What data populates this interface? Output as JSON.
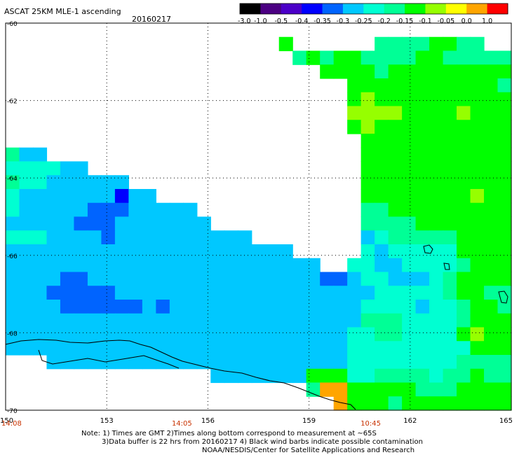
{
  "header": {
    "product": "ASCAT 25KM MLE-1 ascending",
    "date": "20160217"
  },
  "colorbar": {
    "labels": [
      "-3.0",
      "-1.0",
      "-0.5",
      "-0.4",
      "-0.35",
      "-0.3",
      "-0.25",
      "-0.2",
      "-0.15",
      "-0.1",
      "-0.05",
      "0.0",
      "1.0"
    ],
    "colors": [
      "#000000",
      "#4b0082",
      "#4b00c8",
      "#0000ff",
      "#0064ff",
      "#00c8ff",
      "#00ffd2",
      "#00ff96",
      "#00ff00",
      "#96ff00",
      "#ffff00",
      "#ffa500",
      "#ff0000"
    ]
  },
  "chart_data": {
    "type": "heatmap",
    "title": "ASCAT 25KM MLE-1 ascending",
    "date": "20160217",
    "x_ticks": [
      "150",
      "153",
      "156",
      "159",
      "162",
      "165"
    ],
    "y_ticks": [
      "-60",
      "-62",
      "-64",
      "-66",
      "-68",
      "-70"
    ],
    "xlim": [
      150,
      165
    ],
    "ylim": [
      -70,
      -60
    ],
    "time_labels": [
      {
        "x": 150,
        "label": "14:08"
      },
      {
        "x": 155.2,
        "label": "14:05"
      },
      {
        "x": 160.8,
        "label": "10:45"
      }
    ],
    "grid": true,
    "cell_encoding": "each number is an index into colorbar.colors for one grid cell; -1 = no data (white)",
    "grid_rows": 28,
    "grid_cols": 37,
    "cells": [
      [
        -1,
        -1,
        -1,
        -1,
        -1,
        -1,
        -1,
        -1,
        -1,
        -1,
        -1,
        -1,
        -1,
        -1,
        -1,
        -1,
        -1,
        -1,
        -1,
        -1,
        -1,
        -1,
        -1,
        -1,
        -1,
        -1,
        -1,
        -1,
        -1,
        -1,
        -1,
        -1,
        -1,
        -1,
        -1,
        -1,
        -1
      ],
      [
        -1,
        -1,
        -1,
        -1,
        -1,
        -1,
        -1,
        -1,
        -1,
        -1,
        -1,
        -1,
        -1,
        -1,
        -1,
        -1,
        -1,
        -1,
        -1,
        -1,
        8,
        -1,
        -1,
        -1,
        -1,
        -1,
        -1,
        7,
        7,
        7,
        7,
        8,
        8,
        7,
        7,
        -1,
        -1
      ],
      [
        -1,
        -1,
        -1,
        -1,
        -1,
        -1,
        -1,
        -1,
        -1,
        -1,
        -1,
        -1,
        -1,
        -1,
        -1,
        -1,
        -1,
        -1,
        -1,
        -1,
        -1,
        7,
        8,
        7,
        8,
        8,
        7,
        7,
        7,
        7,
        8,
        8,
        7,
        7,
        7,
        7,
        7
      ],
      [
        -1,
        -1,
        -1,
        -1,
        -1,
        -1,
        -1,
        -1,
        -1,
        -1,
        -1,
        -1,
        -1,
        -1,
        -1,
        -1,
        -1,
        -1,
        -1,
        -1,
        -1,
        -1,
        -1,
        8,
        8,
        8,
        8,
        7,
        8,
        8,
        8,
        8,
        8,
        8,
        8,
        8,
        8
      ],
      [
        -1,
        -1,
        -1,
        -1,
        -1,
        -1,
        -1,
        -1,
        -1,
        -1,
        -1,
        -1,
        -1,
        -1,
        -1,
        -1,
        -1,
        -1,
        -1,
        -1,
        -1,
        -1,
        -1,
        -1,
        -1,
        8,
        8,
        8,
        8,
        8,
        8,
        8,
        8,
        8,
        8,
        8,
        7
      ],
      [
        -1,
        -1,
        -1,
        -1,
        -1,
        -1,
        -1,
        -1,
        -1,
        -1,
        -1,
        -1,
        -1,
        -1,
        -1,
        -1,
        -1,
        -1,
        -1,
        -1,
        -1,
        -1,
        -1,
        -1,
        -1,
        8,
        9,
        8,
        8,
        8,
        8,
        8,
        8,
        8,
        8,
        8,
        8
      ],
      [
        -1,
        -1,
        -1,
        -1,
        -1,
        -1,
        -1,
        -1,
        -1,
        -1,
        -1,
        -1,
        -1,
        -1,
        -1,
        -1,
        -1,
        -1,
        -1,
        -1,
        -1,
        -1,
        -1,
        -1,
        -1,
        9,
        9,
        9,
        9,
        8,
        8,
        8,
        8,
        9,
        8,
        8,
        8
      ],
      [
        -1,
        -1,
        -1,
        -1,
        -1,
        -1,
        -1,
        -1,
        -1,
        -1,
        -1,
        -1,
        -1,
        -1,
        -1,
        -1,
        -1,
        -1,
        -1,
        -1,
        -1,
        -1,
        -1,
        -1,
        -1,
        8,
        9,
        8,
        8,
        8,
        8,
        8,
        8,
        8,
        8,
        8,
        8
      ],
      [
        -1,
        -1,
        -1,
        -1,
        -1,
        -1,
        -1,
        -1,
        -1,
        -1,
        -1,
        -1,
        -1,
        -1,
        -1,
        -1,
        -1,
        -1,
        -1,
        -1,
        -1,
        -1,
        -1,
        -1,
        -1,
        -1,
        8,
        8,
        8,
        8,
        8,
        8,
        8,
        8,
        8,
        8,
        8
      ],
      [
        7,
        5,
        5,
        -1,
        -1,
        -1,
        -1,
        -1,
        -1,
        -1,
        -1,
        -1,
        -1,
        -1,
        -1,
        -1,
        -1,
        -1,
        -1,
        -1,
        -1,
        -1,
        -1,
        -1,
        -1,
        -1,
        8,
        8,
        8,
        8,
        8,
        8,
        8,
        8,
        8,
        8,
        8
      ],
      [
        6,
        6,
        6,
        6,
        5,
        5,
        -1,
        -1,
        -1,
        -1,
        -1,
        -1,
        -1,
        -1,
        -1,
        -1,
        -1,
        -1,
        -1,
        -1,
        -1,
        -1,
        -1,
        -1,
        -1,
        -1,
        8,
        8,
        8,
        8,
        8,
        8,
        8,
        8,
        8,
        8,
        8
      ],
      [
        7,
        6,
        6,
        5,
        5,
        5,
        5,
        5,
        5,
        -1,
        -1,
        -1,
        -1,
        -1,
        -1,
        -1,
        -1,
        -1,
        -1,
        -1,
        -1,
        -1,
        -1,
        -1,
        -1,
        -1,
        8,
        8,
        8,
        8,
        8,
        8,
        8,
        8,
        8,
        8,
        8
      ],
      [
        6,
        5,
        5,
        5,
        5,
        5,
        5,
        5,
        3,
        5,
        5,
        -1,
        -1,
        -1,
        -1,
        -1,
        -1,
        -1,
        -1,
        -1,
        -1,
        -1,
        -1,
        -1,
        -1,
        -1,
        8,
        8,
        8,
        8,
        8,
        8,
        8,
        8,
        9,
        8,
        8
      ],
      [
        6,
        5,
        5,
        5,
        5,
        5,
        4,
        4,
        4,
        5,
        5,
        5,
        5,
        5,
        -1,
        -1,
        -1,
        -1,
        -1,
        -1,
        -1,
        -1,
        -1,
        -1,
        -1,
        -1,
        7,
        7,
        8,
        8,
        8,
        8,
        8,
        8,
        8,
        8,
        8
      ],
      [
        5,
        5,
        5,
        5,
        5,
        4,
        4,
        4,
        5,
        5,
        5,
        5,
        5,
        5,
        5,
        -1,
        -1,
        -1,
        -1,
        -1,
        -1,
        -1,
        -1,
        -1,
        -1,
        -1,
        7,
        7,
        7,
        7,
        8,
        8,
        8,
        8,
        8,
        8,
        8
      ],
      [
        6,
        6,
        6,
        5,
        5,
        5,
        5,
        4,
        5,
        5,
        5,
        5,
        5,
        5,
        5,
        5,
        5,
        5,
        -1,
        -1,
        -1,
        -1,
        -1,
        -1,
        -1,
        -1,
        5,
        6,
        7,
        7,
        7,
        7,
        7,
        8,
        8,
        8,
        8
      ],
      [
        5,
        5,
        5,
        5,
        5,
        5,
        5,
        5,
        5,
        5,
        5,
        5,
        5,
        5,
        5,
        5,
        5,
        5,
        5,
        5,
        5,
        -1,
        -1,
        -1,
        -1,
        -1,
        6,
        5,
        6,
        6,
        6,
        6,
        6,
        8,
        8,
        8,
        8
      ],
      [
        5,
        5,
        5,
        5,
        5,
        5,
        5,
        5,
        5,
        5,
        5,
        5,
        5,
        5,
        5,
        5,
        5,
        5,
        5,
        5,
        5,
        5,
        5,
        -1,
        -1,
        6,
        6,
        5,
        5,
        6,
        6,
        6,
        6,
        7,
        8,
        8,
        8
      ],
      [
        5,
        5,
        5,
        5,
        4,
        4,
        5,
        5,
        5,
        5,
        5,
        5,
        5,
        5,
        5,
        5,
        5,
        5,
        5,
        5,
        5,
        5,
        5,
        4,
        4,
        5,
        6,
        6,
        5,
        5,
        5,
        6,
        7,
        8,
        8,
        8,
        8
      ],
      [
        5,
        5,
        5,
        4,
        4,
        4,
        4,
        4,
        5,
        5,
        5,
        5,
        5,
        5,
        5,
        5,
        5,
        5,
        5,
        5,
        5,
        5,
        5,
        5,
        5,
        5,
        5,
        6,
        6,
        6,
        6,
        6,
        7,
        8,
        8,
        7,
        7
      ],
      [
        5,
        5,
        5,
        5,
        4,
        4,
        4,
        4,
        4,
        4,
        5,
        4,
        5,
        5,
        5,
        5,
        5,
        5,
        5,
        5,
        5,
        5,
        5,
        5,
        5,
        5,
        6,
        6,
        6,
        6,
        5,
        6,
        6,
        7,
        8,
        8,
        7
      ],
      [
        5,
        5,
        5,
        5,
        5,
        5,
        5,
        5,
        5,
        5,
        5,
        5,
        5,
        5,
        5,
        5,
        5,
        5,
        5,
        5,
        5,
        5,
        5,
        5,
        5,
        5,
        7,
        7,
        7,
        6,
        6,
        6,
        6,
        7,
        8,
        8,
        8
      ],
      [
        5,
        5,
        5,
        5,
        5,
        5,
        5,
        5,
        5,
        5,
        5,
        5,
        5,
        5,
        5,
        5,
        5,
        5,
        5,
        5,
        5,
        5,
        5,
        5,
        5,
        6,
        6,
        7,
        7,
        6,
        6,
        6,
        6,
        8,
        9,
        8,
        8
      ],
      [
        5,
        5,
        5,
        5,
        5,
        5,
        5,
        5,
        5,
        5,
        5,
        5,
        5,
        5,
        5,
        5,
        5,
        5,
        5,
        5,
        5,
        5,
        5,
        5,
        5,
        6,
        6,
        6,
        6,
        6,
        6,
        6,
        6,
        6,
        8,
        8,
        8
      ],
      [
        -1,
        -1,
        -1,
        5,
        5,
        5,
        5,
        5,
        5,
        5,
        5,
        5,
        5,
        5,
        5,
        5,
        5,
        5,
        5,
        5,
        5,
        5,
        5,
        5,
        5,
        6,
        6,
        6,
        6,
        6,
        6,
        6,
        6,
        7,
        7,
        7,
        7
      ],
      [
        -1,
        -1,
        -1,
        -1,
        -1,
        -1,
        -1,
        -1,
        -1,
        -1,
        -1,
        -1,
        -1,
        -1,
        -1,
        5,
        5,
        5,
        5,
        5,
        5,
        5,
        8,
        8,
        8,
        6,
        6,
        7,
        7,
        7,
        7,
        6,
        7,
        7,
        8,
        7,
        7
      ],
      [
        -1,
        -1,
        -1,
        -1,
        -1,
        -1,
        -1,
        -1,
        -1,
        -1,
        -1,
        -1,
        -1,
        -1,
        -1,
        -1,
        -1,
        -1,
        -1,
        -1,
        -1,
        -1,
        7,
        11,
        11,
        8,
        8,
        8,
        8,
        8,
        7,
        7,
        7,
        8,
        8,
        8,
        8
      ],
      [
        -1,
        -1,
        -1,
        -1,
        -1,
        -1,
        -1,
        -1,
        -1,
        -1,
        -1,
        -1,
        -1,
        -1,
        -1,
        -1,
        -1,
        -1,
        -1,
        -1,
        -1,
        -1,
        -1,
        -1,
        11,
        8,
        8,
        8,
        7,
        8,
        8,
        8,
        8,
        8,
        8,
        8,
        8
      ]
    ]
  },
  "footer": {
    "note_line1": "Note: 1) Times are GMT 2)Times along bottom correspond to measurement at ~65S",
    "note_line2": "3)Data buffer is 22 hrs from 20160217 4) Black wind barbs indicate possible contamination",
    "note_line3": "NOAA/NESDIS/Center for Satellite Applications and Research"
  }
}
